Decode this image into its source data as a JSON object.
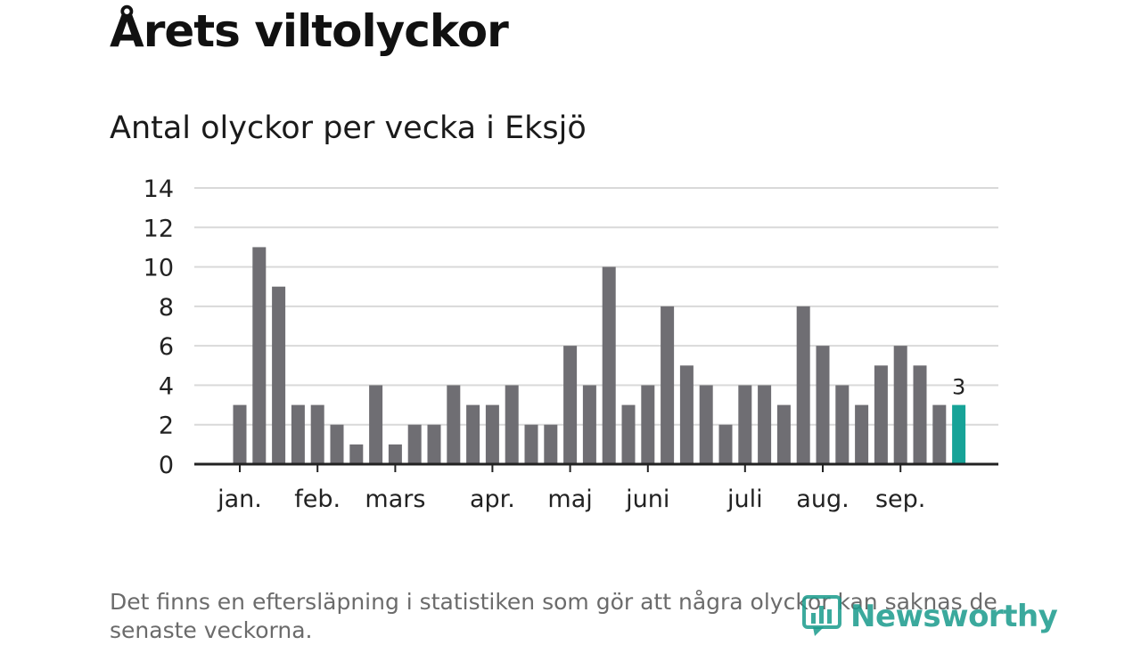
{
  "header": {
    "title": "Årets viltolyckor",
    "subtitle": "Antal olyckor per vecka i Eksjö"
  },
  "footnote": "Det finns en eftersläpning i statistiken som gör att några olyckor kan saknas de senaste veckorna.",
  "logo": {
    "text": "Newsworthy",
    "icon": "newsworthy-chart-icon"
  },
  "colors": {
    "bar": "#6f6e73",
    "highlight": "#17a398",
    "grid": "#d9d9d9",
    "axis": "#222222"
  },
  "chart_data": {
    "type": "bar",
    "title": "Antal olyckor per vecka i Eksjö",
    "xlabel": "",
    "ylabel": "",
    "ylim": [
      0,
      14
    ],
    "yticks": [
      0,
      2,
      4,
      6,
      8,
      10,
      12,
      14
    ],
    "grid": true,
    "values": [
      3,
      11,
      9,
      3,
      3,
      2,
      1,
      4,
      1,
      2,
      2,
      4,
      3,
      3,
      4,
      2,
      2,
      6,
      4,
      10,
      3,
      4,
      8,
      5,
      4,
      2,
      4,
      4,
      3,
      8,
      6,
      4,
      3,
      5,
      6,
      5,
      3,
      3
    ],
    "highlight_index": 37,
    "highlight_label": "3",
    "month_ticks": [
      {
        "label": "jan.",
        "position": 0
      },
      {
        "label": "feb.",
        "position": 4
      },
      {
        "label": "mars",
        "position": 8
      },
      {
        "label": "apr.",
        "position": 13
      },
      {
        "label": "maj",
        "position": 17
      },
      {
        "label": "juni",
        "position": 21
      },
      {
        "label": "juli",
        "position": 26
      },
      {
        "label": "aug.",
        "position": 30
      },
      {
        "label": "sep.",
        "position": 34
      }
    ]
  }
}
